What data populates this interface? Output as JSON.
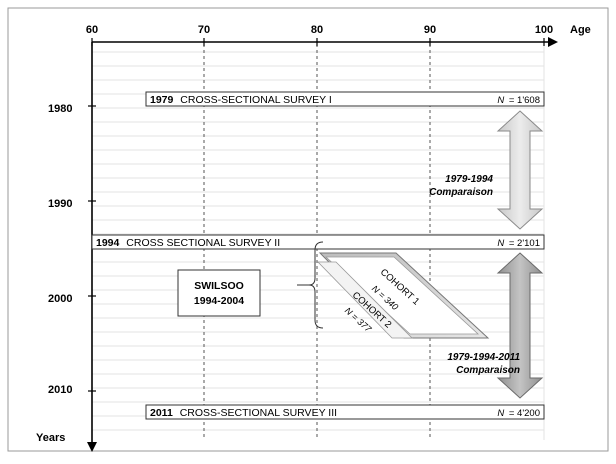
{
  "axes": {
    "age_label": "Age",
    "years_label": "Years",
    "age_ticks": [
      "60",
      "70",
      "80",
      "90",
      "100"
    ],
    "year_ticks": [
      "1980",
      "1990",
      "2000",
      "2010"
    ]
  },
  "surveys": [
    {
      "year": "1979",
      "name": "CROSS-SECTIONAL SURVEY I",
      "n_label": "N",
      "n_value": "= 1'608"
    },
    {
      "year": "1994",
      "name": "CROSS SECTIONAL SURVEY II",
      "n_label": "N",
      "n_value": "= 2'101"
    },
    {
      "year": "2011",
      "name": "CROSS-SECTIONAL SURVEY  III",
      "n_label": "N",
      "n_value": "= 4'200"
    }
  ],
  "swilsoo": {
    "title": "SWILSOO",
    "years": "1994-2004"
  },
  "cohorts": [
    {
      "name": "COHORT   1",
      "n": "N = 340"
    },
    {
      "name": "COHORT   2",
      "n": "N = 377"
    }
  ],
  "comparisons": [
    {
      "line1": "1979-1994",
      "line2": "Comparaison"
    },
    {
      "line1": "1979-1994-2011",
      "line2": "Comparaison"
    }
  ],
  "colors": {
    "grid": "#e0e0e0",
    "arrow_light": "#d4d4d4",
    "arrow_dark": "#a8a8a8",
    "cohort_fill": "#cfcfcf"
  }
}
